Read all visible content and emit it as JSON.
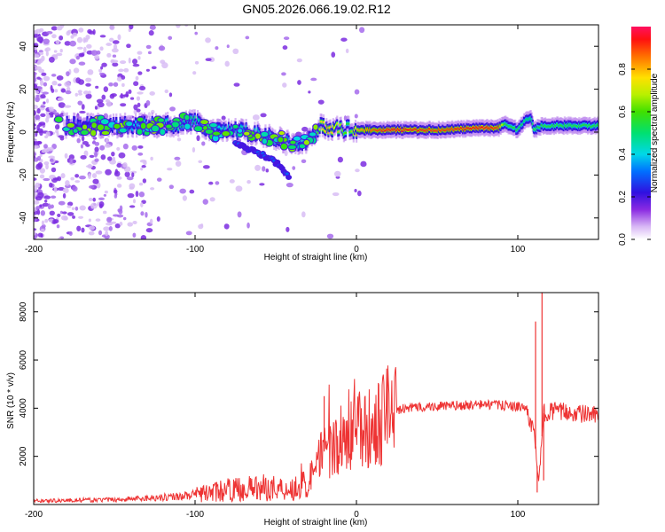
{
  "title": "GN05.2026.066.19.02.R12",
  "chart_data": [
    {
      "type": "heatmap",
      "title": "GN05.2026.066.19.02.R12",
      "xlabel": "Height of straight line (km)",
      "ylabel": "Frequency (Hz)",
      "xlim": [
        -200,
        150
      ],
      "ylim": [
        -50,
        50
      ],
      "xticks": [
        -200,
        -100,
        0,
        100
      ],
      "yticks": [
        -40,
        -20,
        0,
        20,
        40
      ],
      "colorbar": {
        "label": "Normalized spectral amplitude",
        "range": [
          0,
          1
        ],
        "ticks": [
          "0.0",
          "0.2",
          "0.4",
          "0.6",
          "0.8"
        ]
      },
      "ridge": {
        "x": [
          -180,
          -150,
          -120,
          -100,
          -90,
          -75,
          -60,
          -45,
          -36,
          -30,
          -27,
          -22,
          -18,
          -14,
          -10,
          -5,
          0,
          20,
          50,
          80,
          88,
          92,
          100,
          104,
          108,
          110,
          115,
          130,
          150
        ],
        "freq": [
          3,
          3,
          3,
          5,
          0,
          1,
          -1,
          -4,
          -6,
          -5,
          -1,
          3,
          2,
          2,
          1,
          2,
          1,
          1,
          1,
          2,
          2,
          4,
          1,
          5,
          7,
          1,
          3,
          3,
          3
        ],
        "amp": [
          0.25,
          0.35,
          0.45,
          0.5,
          0.4,
          0.45,
          0.45,
          0.45,
          0.45,
          0.4,
          0.4,
          0.75,
          0.8,
          0.75,
          0.7,
          0.55,
          0.8,
          0.95,
          0.9,
          0.95,
          0.9,
          0.55,
          0.55,
          0.5,
          0.5,
          0.55,
          0.55,
          0.55,
          0.55
        ]
      },
      "secondary_branch": {
        "x": [
          -75,
          -60,
          -50,
          -45,
          -42
        ],
        "freq": [
          -5,
          -10,
          -14,
          -18,
          -21
        ]
      }
    },
    {
      "type": "line",
      "title": "",
      "xlabel": "Height of straight line (km)",
      "ylabel": "SNR (10 * v/v)",
      "xlim": [
        -200,
        150
      ],
      "ylim": [
        0,
        8800
      ],
      "xticks": [
        -200,
        -100,
        0,
        100
      ],
      "yticks": [
        2000,
        4000,
        6000,
        8000
      ],
      "line_color": "#ee3333",
      "trend": {
        "x": [
          -200,
          -150,
          -120,
          -100,
          -80,
          -60,
          -50,
          -40,
          -30,
          -25,
          -20,
          -10,
          0,
          10,
          20,
          30,
          40,
          60,
          80,
          95,
          105,
          110,
          113,
          116,
          120,
          150
        ],
        "snr": [
          150,
          200,
          300,
          400,
          600,
          700,
          700,
          650,
          900,
          1600,
          2200,
          2700,
          3000,
          3300,
          3800,
          4000,
          4050,
          4100,
          4150,
          4100,
          4000,
          3000,
          900,
          3800,
          3900,
          3700
        ]
      },
      "spikes": {
        "x": [
          -20,
          111,
          112,
          115,
          116
        ],
        "snr": [
          4500,
          7600,
          500,
          8800,
          1000
        ]
      }
    }
  ]
}
